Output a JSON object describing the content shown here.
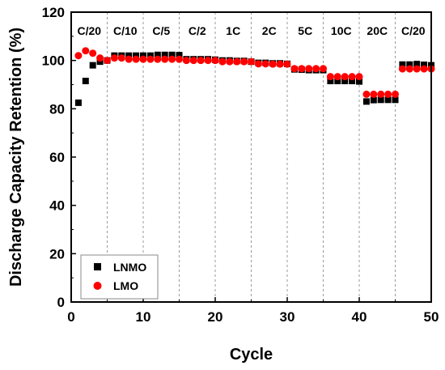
{
  "chart_data": {
    "type": "scatter",
    "xlabel": "Cycle",
    "ylabel": "Discharge Capacity Retention (%)",
    "xlim": [
      0,
      50
    ],
    "ylim": [
      0,
      120
    ],
    "xticks": [
      0,
      10,
      20,
      30,
      40,
      50
    ],
    "yticks": [
      0,
      20,
      40,
      60,
      80,
      100,
      120
    ],
    "grid": false,
    "legend_position": "bottom-left",
    "rate_labels": [
      {
        "label": "C/20",
        "x": 2.5
      },
      {
        "label": "C/10",
        "x": 7.5
      },
      {
        "label": "C/5",
        "x": 12.5
      },
      {
        "label": "C/2",
        "x": 17.5
      },
      {
        "label": "1C",
        "x": 22.5
      },
      {
        "label": "2C",
        "x": 27.5
      },
      {
        "label": "5C",
        "x": 32.5
      },
      {
        "label": "10C",
        "x": 37.5
      },
      {
        "label": "20C",
        "x": 42.5
      },
      {
        "label": "C/20",
        "x": 47.5
      }
    ],
    "separators": [
      5,
      10,
      15,
      20,
      25,
      30,
      35,
      40,
      45
    ],
    "series": [
      {
        "name": "LNMO",
        "marker": "square",
        "color": "#000000",
        "x": [
          1,
          2,
          3,
          4,
          5,
          6,
          7,
          8,
          9,
          10,
          11,
          12,
          13,
          14,
          15,
          16,
          17,
          18,
          19,
          20,
          21,
          22,
          23,
          24,
          25,
          26,
          27,
          28,
          29,
          30,
          31,
          32,
          33,
          34,
          35,
          36,
          37,
          38,
          39,
          40,
          41,
          42,
          43,
          44,
          45,
          46,
          47,
          48,
          49,
          50
        ],
        "y": [
          82.5,
          91.5,
          98,
          99.5,
          100,
          102,
          102,
          102,
          102,
          102,
          102,
          102.3,
          102.3,
          102.3,
          102.2,
          100.5,
          100.5,
          100.5,
          100.5,
          100.3,
          100,
          100,
          99.8,
          99.8,
          99.5,
          99,
          99,
          98.8,
          98.8,
          98.6,
          96.3,
          96.2,
          96,
          96,
          96,
          91.5,
          91.5,
          91.5,
          91.5,
          91.3,
          83,
          83.6,
          83.7,
          83.7,
          83.7,
          98.3,
          98.3,
          98.5,
          98.2,
          98
        ]
      },
      {
        "name": "LMO",
        "marker": "circle",
        "color": "#ff0000",
        "x": [
          1,
          2,
          3,
          4,
          5,
          6,
          7,
          8,
          9,
          10,
          11,
          12,
          13,
          14,
          15,
          16,
          17,
          18,
          19,
          20,
          21,
          22,
          23,
          24,
          25,
          26,
          27,
          28,
          29,
          30,
          31,
          32,
          33,
          34,
          35,
          36,
          37,
          38,
          39,
          40,
          41,
          42,
          43,
          44,
          45,
          46,
          47,
          48,
          49,
          50
        ],
        "y": [
          102,
          104,
          103,
          101,
          100,
          101,
          101,
          100.5,
          100.5,
          100.5,
          100.5,
          100.5,
          100.5,
          100.5,
          100.5,
          100,
          100,
          100,
          100,
          100,
          99.5,
          99.5,
          99.5,
          99.5,
          99.5,
          98.6,
          98.6,
          98.5,
          98.5,
          98.5,
          96.6,
          96.6,
          96.6,
          96.6,
          96.6,
          93.3,
          93.3,
          93.3,
          93.3,
          93.3,
          86,
          86,
          86,
          86,
          86,
          96.5,
          96.5,
          96.5,
          96.5,
          96.5
        ]
      }
    ]
  }
}
